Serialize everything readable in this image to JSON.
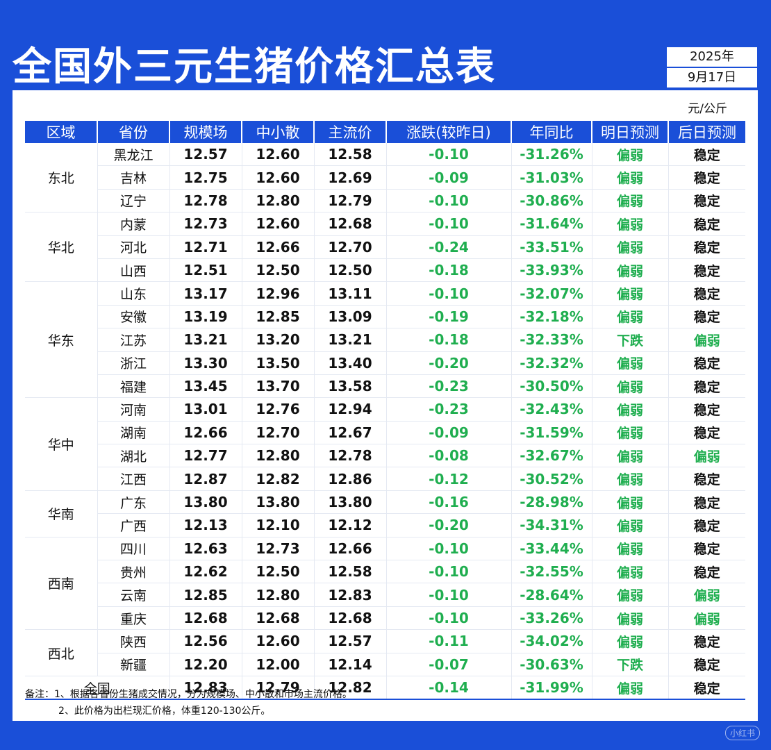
{
  "title": "全国外三元生猪价格汇总表",
  "date": {
    "year": "2025年",
    "day": "9月17日"
  },
  "unit": "元/公斤",
  "headers": [
    "区域",
    "省份",
    "规模场",
    "中小散",
    "主流价",
    "涨跌(较昨日)",
    "年同比",
    "明日预测",
    "后日预测"
  ],
  "regions": [
    {
      "name": "东北",
      "rows": 3
    },
    {
      "name": "华北",
      "rows": 3
    },
    {
      "name": "华东",
      "rows": 5
    },
    {
      "name": "华中",
      "rows": 4
    },
    {
      "name": "华南",
      "rows": 2
    },
    {
      "name": "西南",
      "rows": 4
    },
    {
      "name": "西北",
      "rows": 2
    }
  ],
  "rows": [
    [
      "黑龙江",
      "12.57",
      "12.60",
      "12.58",
      "-0.10",
      "-31.26%",
      "偏弱",
      "稳定"
    ],
    [
      "吉林",
      "12.75",
      "12.60",
      "12.69",
      "-0.09",
      "-31.03%",
      "偏弱",
      "稳定"
    ],
    [
      "辽宁",
      "12.78",
      "12.80",
      "12.79",
      "-0.10",
      "-30.86%",
      "偏弱",
      "稳定"
    ],
    [
      "内蒙",
      "12.73",
      "12.60",
      "12.68",
      "-0.10",
      "-31.64%",
      "偏弱",
      "稳定"
    ],
    [
      "河北",
      "12.71",
      "12.66",
      "12.70",
      "-0.24",
      "-33.51%",
      "偏弱",
      "稳定"
    ],
    [
      "山西",
      "12.51",
      "12.50",
      "12.50",
      "-0.18",
      "-33.93%",
      "偏弱",
      "稳定"
    ],
    [
      "山东",
      "13.17",
      "12.96",
      "13.11",
      "-0.10",
      "-32.07%",
      "偏弱",
      "稳定"
    ],
    [
      "安徽",
      "13.19",
      "12.85",
      "13.09",
      "-0.19",
      "-32.18%",
      "偏弱",
      "稳定"
    ],
    [
      "江苏",
      "13.21",
      "13.20",
      "13.21",
      "-0.18",
      "-32.33%",
      "下跌",
      "偏弱"
    ],
    [
      "浙江",
      "13.30",
      "13.50",
      "13.40",
      "-0.20",
      "-32.32%",
      "偏弱",
      "稳定"
    ],
    [
      "福建",
      "13.45",
      "13.70",
      "13.58",
      "-0.23",
      "-30.50%",
      "偏弱",
      "稳定"
    ],
    [
      "河南",
      "13.01",
      "12.76",
      "12.94",
      "-0.23",
      "-32.43%",
      "偏弱",
      "稳定"
    ],
    [
      "湖南",
      "12.66",
      "12.70",
      "12.67",
      "-0.09",
      "-31.59%",
      "偏弱",
      "稳定"
    ],
    [
      "湖北",
      "12.77",
      "12.80",
      "12.78",
      "-0.08",
      "-32.67%",
      "偏弱",
      "偏弱"
    ],
    [
      "江西",
      "12.87",
      "12.82",
      "12.86",
      "-0.12",
      "-30.52%",
      "偏弱",
      "稳定"
    ],
    [
      "广东",
      "13.80",
      "13.80",
      "13.80",
      "-0.16",
      "-28.98%",
      "偏弱",
      "稳定"
    ],
    [
      "广西",
      "12.13",
      "12.10",
      "12.12",
      "-0.20",
      "-34.31%",
      "偏弱",
      "稳定"
    ],
    [
      "四川",
      "12.63",
      "12.73",
      "12.66",
      "-0.10",
      "-33.44%",
      "偏弱",
      "稳定"
    ],
    [
      "贵州",
      "12.62",
      "12.50",
      "12.58",
      "-0.10",
      "-32.55%",
      "偏弱",
      "稳定"
    ],
    [
      "云南",
      "12.85",
      "12.80",
      "12.83",
      "-0.10",
      "-28.64%",
      "偏弱",
      "偏弱"
    ],
    [
      "重庆",
      "12.68",
      "12.68",
      "12.68",
      "-0.10",
      "-33.26%",
      "偏弱",
      "偏弱"
    ],
    [
      "陕西",
      "12.56",
      "12.60",
      "12.57",
      "-0.11",
      "-34.02%",
      "偏弱",
      "稳定"
    ],
    [
      "新疆",
      "12.20",
      "12.00",
      "12.14",
      "-0.07",
      "-30.63%",
      "下跌",
      "稳定"
    ]
  ],
  "total": [
    "全国",
    "12.83",
    "12.79",
    "12.82",
    "-0.14",
    "-31.99%",
    "偏弱",
    "稳定"
  ],
  "notes": [
    "备注：1、根据各省份生猪成交情况，分为规模场、中小散和市场主流价格。",
    "2、此价格为出栏现汇价格，体重120-130公斤。"
  ],
  "watermark": "小红书",
  "colors": {
    "brand_blue": "#1a4fd8",
    "down_green": "#1fae4f"
  }
}
